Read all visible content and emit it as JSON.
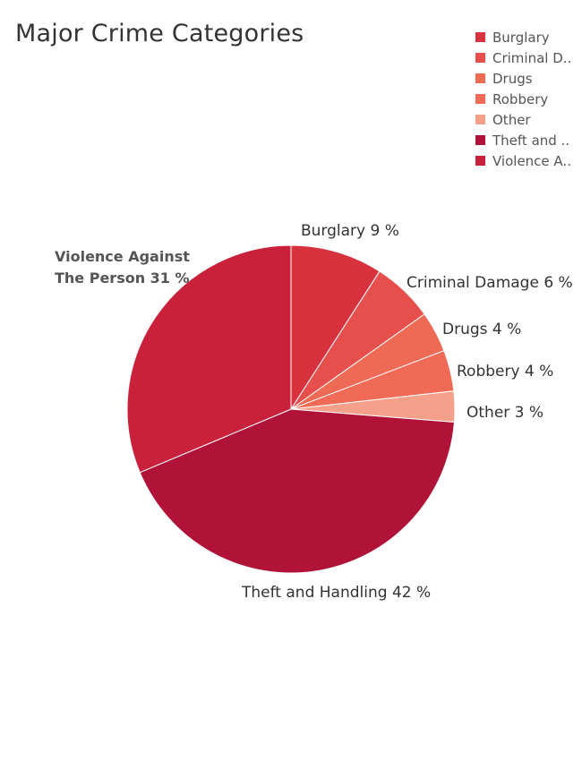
{
  "chart_data": {
    "type": "pie",
    "title": "Major Crime Categories",
    "slices": [
      {
        "name": "Burglary",
        "label": "Burglary",
        "value": 9,
        "value_label": "9 %",
        "color": "#d8323f"
      },
      {
        "name": "Criminal Damage",
        "label": "Criminal Damage",
        "value": 6,
        "value_label": "6 %",
        "color": "#e64f4b"
      },
      {
        "name": "Drugs",
        "label": "Drugs",
        "value": 4,
        "value_label": "4 %",
        "color": "#ef6a55"
      },
      {
        "name": "Robbery",
        "label": "Robbery",
        "value": 4,
        "value_label": "4 %",
        "color": "#f06a55"
      },
      {
        "name": "Other",
        "label": "Other",
        "value": 3,
        "value_label": "3 %",
        "color": "#f5a08a"
      },
      {
        "name": "Theft and Handling",
        "label": "Theft and Handling",
        "value": 42,
        "value_label": "42 %",
        "color": "#b01238"
      },
      {
        "name": "Violence Against The Person",
        "label": "Violence Against The Person",
        "value": 31,
        "value_label": "31 %",
        "color": "#c9213c"
      }
    ],
    "legend": {
      "placement": "top-right",
      "items": [
        {
          "label": "Burglary",
          "color": "#d8323f"
        },
        {
          "label": "Criminal D..",
          "color": "#e64f4b"
        },
        {
          "label": "Drugs",
          "color": "#ef6a55"
        },
        {
          "label": "Robbery",
          "color": "#f06a55"
        },
        {
          "label": "Other",
          "color": "#f5a08a"
        },
        {
          "label": "Theft and ..",
          "color": "#b01238"
        },
        {
          "label": "Violence A..",
          "color": "#c9213c"
        }
      ]
    },
    "slice_labels": {
      "burglary": "Burglary  9 %",
      "criminal_damage": "Criminal Damage  6 %",
      "drugs": "Drugs  4 %",
      "robbery": "Robbery  4 %",
      "other": "Other  3 %",
      "theft": "Theft and Handling  42 %",
      "violence_line1": "Violence Against",
      "violence_line2": "The Person 31 %"
    }
  }
}
